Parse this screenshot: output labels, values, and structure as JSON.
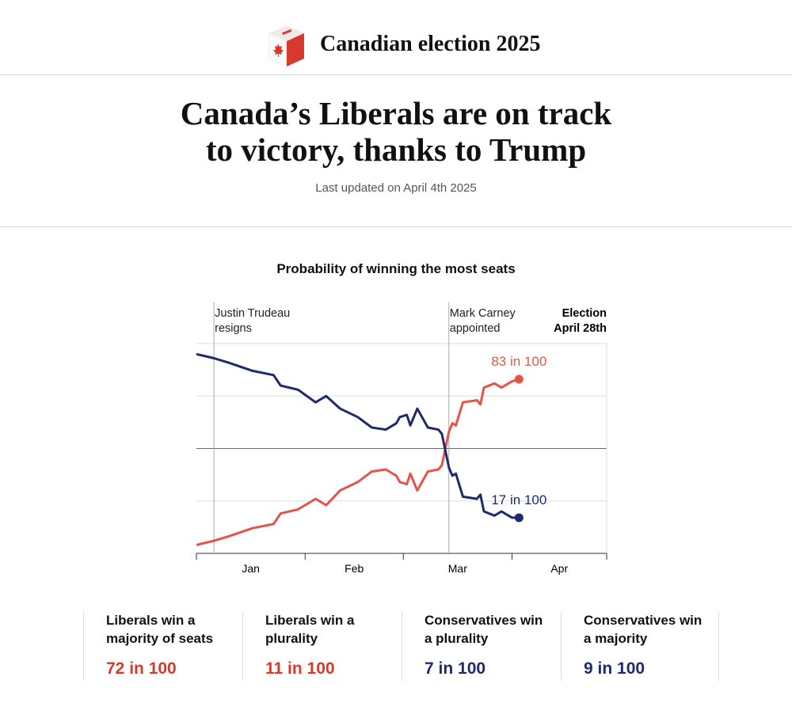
{
  "header": {
    "title": "Canadian election 2025"
  },
  "headline": [
    "Canada’s Liberals are on track",
    "to victory, thanks to Trump"
  ],
  "updated": "Last updated on April 4th 2025",
  "chart_data": {
    "type": "line",
    "title": "Probability of winning the most seats",
    "x": [
      0,
      5,
      9,
      16,
      22,
      24,
      29,
      34,
      37,
      41,
      46,
      50,
      54,
      57,
      58,
      60,
      61,
      63,
      66,
      69,
      70,
      72,
      73,
      74,
      76,
      80,
      81,
      82,
      85,
      87,
      90,
      92
    ],
    "xlim": [
      0,
      117
    ],
    "xticks": [
      {
        "value": 0,
        "label": "Jan"
      },
      {
        "value": 31,
        "label": "Feb"
      },
      {
        "value": 59,
        "label": "Mar"
      },
      {
        "value": 90,
        "label": "Apr"
      }
    ],
    "ylim": [
      0,
      100
    ],
    "yticks": [
      0,
      25,
      50,
      75,
      100
    ],
    "grid": true,
    "series": [
      {
        "name": "Liberals",
        "color": "#e5544a",
        "end_label": "83 in 100",
        "values": [
          4,
          6,
          8,
          12,
          14,
          19,
          21,
          26,
          23,
          30,
          34,
          39,
          40,
          37,
          34,
          33,
          38,
          30,
          39,
          40,
          42,
          58,
          62,
          61,
          72,
          73,
          71,
          79,
          81,
          79,
          82,
          83
        ]
      },
      {
        "name": "Conservatives",
        "color": "#1f2a6e",
        "end_label": "17 in 100",
        "values": [
          95,
          93,
          91,
          87,
          85,
          80,
          78,
          72,
          75,
          69,
          65,
          60,
          59,
          62,
          65,
          66,
          61,
          69,
          60,
          59,
          57,
          41,
          37,
          38,
          27,
          26,
          28,
          20,
          18,
          20,
          17,
          17
        ]
      }
    ],
    "annotations": [
      {
        "x": 5,
        "lines": [
          "Justin Trudeau",
          "resigns"
        ]
      },
      {
        "x": 72,
        "lines": [
          "Mark Carney",
          "appointed"
        ]
      }
    ],
    "end_note": [
      "Election",
      "April 28th"
    ]
  },
  "outcomes": [
    {
      "label": [
        "Liberals win a",
        "majority of seats"
      ],
      "value": "72 in 100",
      "color": "#d63a2c"
    },
    {
      "label": [
        "Liberals win a",
        "plurality"
      ],
      "value": "11 in 100",
      "color": "#d63a2c"
    },
    {
      "label": [
        "Conservatives win",
        "a plurality"
      ],
      "value": "7 in 100",
      "color": "#1f2a6e"
    },
    {
      "label": [
        "Conservatives win",
        "a majority"
      ],
      "value": "9 in 100",
      "color": "#1f2a6e"
    }
  ]
}
